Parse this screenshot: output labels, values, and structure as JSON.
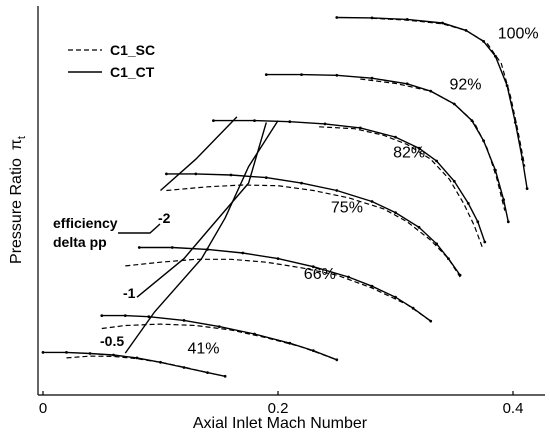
{
  "chart_data": {
    "type": "line",
    "title": "",
    "xlabel": "Axial Inlet Mach Number",
    "ylabel": "Pressure Ratio",
    "ylabel_symbol": "π",
    "ylabel_subscript": "t",
    "xlim": [
      -0.01,
      0.43
    ],
    "ylim": [
      0,
      10
    ],
    "x_ticks": [
      {
        "value": 0,
        "label": "0"
      },
      {
        "value": 0.2,
        "label": "0.2"
      },
      {
        "value": 0.4,
        "label": "0.4"
      }
    ],
    "grid": false,
    "legend": {
      "position": "top-left",
      "entries": [
        {
          "name": "C1_SC",
          "style": "dashed"
        },
        {
          "name": "C1_CT",
          "style": "solid"
        }
      ]
    },
    "speed_lines": [
      {
        "label": "100%",
        "label_pos": [
          0.387,
          9.28
        ],
        "ct": [
          [
            0.25,
            9.85
          ],
          [
            0.28,
            9.84
          ],
          [
            0.31,
            9.8
          ],
          [
            0.34,
            9.7
          ],
          [
            0.36,
            9.5
          ],
          [
            0.375,
            9.2
          ],
          [
            0.385,
            8.8
          ],
          [
            0.395,
            8.0
          ],
          [
            0.402,
            7.0
          ],
          [
            0.408,
            6.0
          ],
          [
            0.412,
            5.2
          ]
        ],
        "sc": [
          [
            0.28,
            9.83
          ],
          [
            0.31,
            9.78
          ],
          [
            0.34,
            9.68
          ],
          [
            0.36,
            9.5
          ],
          [
            0.378,
            9.15
          ],
          [
            0.39,
            8.6
          ],
          [
            0.398,
            7.7
          ],
          [
            0.404,
            6.8
          ],
          [
            0.41,
            5.8
          ]
        ]
      },
      {
        "label": "92%",
        "label_pos": [
          0.346,
          7.9
        ],
        "ct": [
          [
            0.19,
            8.3
          ],
          [
            0.22,
            8.3
          ],
          [
            0.25,
            8.28
          ],
          [
            0.28,
            8.2
          ],
          [
            0.31,
            8.05
          ],
          [
            0.33,
            7.85
          ],
          [
            0.35,
            7.5
          ],
          [
            0.365,
            7.05
          ],
          [
            0.375,
            6.5
          ],
          [
            0.385,
            5.7
          ],
          [
            0.392,
            4.9
          ],
          [
            0.396,
            4.3
          ]
        ],
        "sc": [
          [
            0.27,
            8.18
          ],
          [
            0.3,
            8.06
          ],
          [
            0.33,
            7.85
          ],
          [
            0.35,
            7.5
          ],
          [
            0.367,
            7.0
          ],
          [
            0.378,
            6.3
          ],
          [
            0.386,
            5.5
          ],
          [
            0.393,
            4.6
          ]
        ]
      },
      {
        "label": "82%",
        "label_pos": [
          0.298,
          6.04
        ],
        "ct": [
          [
            0.145,
            7.05
          ],
          [
            0.18,
            7.05
          ],
          [
            0.21,
            7.02
          ],
          [
            0.24,
            6.96
          ],
          [
            0.27,
            6.85
          ],
          [
            0.3,
            6.6
          ],
          [
            0.32,
            6.3
          ],
          [
            0.335,
            5.95
          ],
          [
            0.35,
            5.4
          ],
          [
            0.362,
            4.8
          ],
          [
            0.37,
            4.3
          ],
          [
            0.376,
            3.75
          ]
        ],
        "sc": [
          [
            0.235,
            6.88
          ],
          [
            0.265,
            6.83
          ],
          [
            0.29,
            6.65
          ],
          [
            0.31,
            6.4
          ],
          [
            0.33,
            6.0
          ],
          [
            0.346,
            5.45
          ],
          [
            0.358,
            4.8
          ],
          [
            0.367,
            4.2
          ],
          [
            0.374,
            3.6
          ]
        ]
      },
      {
        "label": "75%",
        "label_pos": [
          0.245,
          4.55
        ],
        "ct": [
          [
            0.105,
            5.6
          ],
          [
            0.13,
            5.6
          ],
          [
            0.16,
            5.57
          ],
          [
            0.19,
            5.5
          ],
          [
            0.22,
            5.35
          ],
          [
            0.25,
            5.15
          ],
          [
            0.28,
            4.85
          ],
          [
            0.3,
            4.55
          ],
          [
            0.32,
            4.15
          ],
          [
            0.335,
            3.7
          ],
          [
            0.345,
            3.3
          ],
          [
            0.355,
            2.85
          ]
        ],
        "sc": [
          [
            0.105,
            5.15
          ],
          [
            0.14,
            5.25
          ],
          [
            0.17,
            5.3
          ],
          [
            0.2,
            5.28
          ],
          [
            0.23,
            5.15
          ],
          [
            0.26,
            4.95
          ],
          [
            0.29,
            4.65
          ],
          [
            0.31,
            4.3
          ],
          [
            0.33,
            3.8
          ],
          [
            0.345,
            3.3
          ],
          [
            0.355,
            2.8
          ]
        ]
      },
      {
        "label": "66%",
        "label_pos": [
          0.222,
          2.75
        ],
        "ct": [
          [
            0.082,
            3.6
          ],
          [
            0.11,
            3.6
          ],
          [
            0.14,
            3.55
          ],
          [
            0.17,
            3.45
          ],
          [
            0.2,
            3.3
          ],
          [
            0.23,
            3.08
          ],
          [
            0.26,
            2.8
          ],
          [
            0.28,
            2.55
          ],
          [
            0.3,
            2.25
          ],
          [
            0.315,
            1.95
          ],
          [
            0.33,
            1.6
          ]
        ],
        "sc": [
          [
            0.07,
            3.1
          ],
          [
            0.1,
            3.2
          ],
          [
            0.13,
            3.28
          ],
          [
            0.16,
            3.28
          ],
          [
            0.19,
            3.2
          ],
          [
            0.22,
            3.05
          ],
          [
            0.25,
            2.85
          ],
          [
            0.28,
            2.5
          ],
          [
            0.31,
            2.05
          ],
          [
            0.33,
            1.6
          ]
        ]
      },
      {
        "label": "41%",
        "label_pos": [
          0.123,
          0.72
        ],
        "ct": [
          [
            0.0,
            0.75
          ],
          [
            0.02,
            0.75
          ],
          [
            0.04,
            0.72
          ],
          [
            0.06,
            0.68
          ],
          [
            0.08,
            0.6
          ],
          [
            0.1,
            0.48
          ],
          [
            0.12,
            0.34
          ],
          [
            0.14,
            0.2
          ],
          [
            0.155,
            0.1
          ]
        ],
        "sc": [
          [
            0.02,
            0.6
          ],
          [
            0.04,
            0.65
          ],
          [
            0.06,
            0.64
          ],
          [
            0.08,
            0.58
          ],
          [
            0.1,
            0.48
          ],
          [
            0.12,
            0.35
          ],
          [
            0.14,
            0.2
          ]
        ]
      },
      {
        "label": "",
        "ct": [
          [
            0.05,
            1.75
          ],
          [
            0.07,
            1.75
          ],
          [
            0.09,
            1.72
          ],
          [
            0.12,
            1.62
          ],
          [
            0.15,
            1.45
          ],
          [
            0.18,
            1.25
          ],
          [
            0.21,
            1.0
          ],
          [
            0.23,
            0.8
          ],
          [
            0.25,
            0.55
          ]
        ],
        "sc": [
          [
            0.05,
            1.4
          ],
          [
            0.07,
            1.48
          ],
          [
            0.1,
            1.52
          ],
          [
            0.13,
            1.48
          ],
          [
            0.16,
            1.36
          ],
          [
            0.19,
            1.15
          ],
          [
            0.22,
            0.9
          ],
          [
            0.25,
            0.55
          ]
        ]
      }
    ],
    "efficiency_delta_lines": [
      {
        "label": "-2",
        "points": [
          [
            0.1,
            5.15
          ],
          [
            0.13,
            6.0
          ],
          [
            0.165,
            7.15
          ]
        ]
      },
      {
        "label": "-1",
        "points": [
          [
            0.08,
            2.25
          ],
          [
            0.12,
            3.3
          ],
          [
            0.14,
            4.05
          ],
          [
            0.175,
            5.35
          ],
          [
            0.19,
            7.0
          ]
        ]
      },
      {
        "label": "-0.5",
        "points": [
          [
            0.07,
            0.73
          ],
          [
            0.095,
            1.85
          ],
          [
            0.135,
            3.3
          ],
          [
            0.155,
            4.4
          ],
          [
            0.175,
            5.8
          ],
          [
            0.2,
            7.05
          ]
        ]
      }
    ],
    "annotations": [
      {
        "lines": [
          "efficiency",
          "delta pp"
        ]
      }
    ]
  }
}
